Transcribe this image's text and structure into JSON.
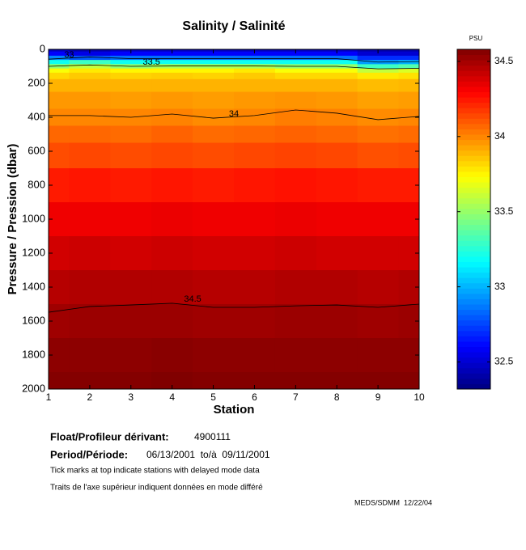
{
  "chart_data": {
    "type": "heatmap",
    "title": "Salinity / Salinité",
    "colorbar_label": "PSU",
    "x_label": "Station",
    "y_label": "Pressure / Pression (dbar)",
    "x": [
      1,
      2,
      3,
      4,
      5,
      6,
      7,
      8,
      9,
      10
    ],
    "y": [
      0,
      25,
      50,
      75,
      100,
      125,
      150,
      200,
      300,
      400,
      500,
      600,
      800,
      1000,
      1200,
      1400,
      1600,
      1800,
      2000
    ],
    "z": [
      [
        32.45,
        32.4,
        32.45,
        32.45,
        32.45,
        32.45,
        32.45,
        32.45,
        32.4,
        32.4
      ],
      [
        32.6,
        32.55,
        32.6,
        32.6,
        32.6,
        32.6,
        32.6,
        32.6,
        32.5,
        32.5
      ],
      [
        32.9,
        32.8,
        32.85,
        32.85,
        32.85,
        32.85,
        32.85,
        32.85,
        32.7,
        32.7
      ],
      [
        33.2,
        33.3,
        33.2,
        33.2,
        33.2,
        33.2,
        33.2,
        33.2,
        32.95,
        33.0
      ],
      [
        33.5,
        33.6,
        33.5,
        33.55,
        33.55,
        33.55,
        33.5,
        33.5,
        33.3,
        33.35
      ],
      [
        33.72,
        33.78,
        33.75,
        33.75,
        33.75,
        33.78,
        33.72,
        33.72,
        33.6,
        33.65
      ],
      [
        33.82,
        33.85,
        33.83,
        33.84,
        33.83,
        33.85,
        33.82,
        33.82,
        33.78,
        33.8
      ],
      [
        33.9,
        33.9,
        33.9,
        33.9,
        33.9,
        33.9,
        33.9,
        33.9,
        33.88,
        33.89
      ],
      [
        33.96,
        33.96,
        33.95,
        33.96,
        33.95,
        33.96,
        33.97,
        33.96,
        33.94,
        33.95
      ],
      [
        34.0,
        34.0,
        34.0,
        34.01,
        33.99,
        34.0,
        34.02,
        34.01,
        33.99,
        34.0
      ],
      [
        34.07,
        34.07,
        34.06,
        34.08,
        34.06,
        34.07,
        34.08,
        34.07,
        34.05,
        34.06
      ],
      [
        34.13,
        34.14,
        34.13,
        34.14,
        34.13,
        34.14,
        34.15,
        34.14,
        34.12,
        34.13
      ],
      [
        34.24,
        34.25,
        34.24,
        34.25,
        34.24,
        34.25,
        34.26,
        34.25,
        34.24,
        34.24
      ],
      [
        34.33,
        34.33,
        34.33,
        34.34,
        34.33,
        34.33,
        34.34,
        34.33,
        34.33,
        34.33
      ],
      [
        34.4,
        34.41,
        34.4,
        34.41,
        34.4,
        34.4,
        34.41,
        34.4,
        34.4,
        34.4
      ],
      [
        34.46,
        34.47,
        34.47,
        34.47,
        34.46,
        34.46,
        34.47,
        34.47,
        34.46,
        34.47
      ],
      [
        34.51,
        34.52,
        34.52,
        34.52,
        34.51,
        34.51,
        34.52,
        34.52,
        34.51,
        34.52
      ],
      [
        34.55,
        34.55,
        34.55,
        34.56,
        34.55,
        34.55,
        34.55,
        34.55,
        34.55,
        34.55
      ],
      [
        34.57,
        34.57,
        34.57,
        34.58,
        34.57,
        34.57,
        34.57,
        34.57,
        34.57,
        34.57
      ]
    ],
    "contours": [
      {
        "level": 33,
        "depths": [
          58,
          45,
          55,
          55,
          55,
          55,
          55,
          55,
          75,
          72
        ]
      },
      {
        "level": 33.5,
        "depths": [
          100,
          92,
          100,
          98,
          98,
          98,
          100,
          100,
          115,
          112
        ]
      },
      {
        "level": 34,
        "depths": [
          390,
          390,
          400,
          381,
          405,
          390,
          357,
          376,
          414,
          395
        ]
      },
      {
        "level": 34.5,
        "depths": [
          1548,
          1514,
          1505,
          1495,
          1519,
          1519,
          1510,
          1505,
          1519,
          1500
        ]
      }
    ],
    "xlim": [
      1,
      10
    ],
    "xticks": [
      1,
      2,
      3,
      4,
      5,
      6,
      7,
      8,
      9,
      10
    ],
    "ylim": [
      0,
      2000
    ],
    "yticks": [
      0,
      200,
      400,
      600,
      800,
      1000,
      1200,
      1400,
      1600,
      1800,
      2000
    ],
    "y_reversed": true,
    "clim": [
      32.32,
      34.58
    ],
    "cticks": [
      32.5,
      33,
      33.5,
      34,
      34.5
    ],
    "colormap": "jet"
  },
  "footer": {
    "float_label": "Float/Profileur dérivant:",
    "float_id": "4900111",
    "period_label": "Period/Période:",
    "period": "06/13/2001  to/à  09/11/2001",
    "note_en": "Tick marks at top indicate stations with delayed mode data",
    "note_fr": "Traits de l'axe supérieur indiquent données en mode différé",
    "credit": "MEDS/SDMM  12/22/04"
  }
}
